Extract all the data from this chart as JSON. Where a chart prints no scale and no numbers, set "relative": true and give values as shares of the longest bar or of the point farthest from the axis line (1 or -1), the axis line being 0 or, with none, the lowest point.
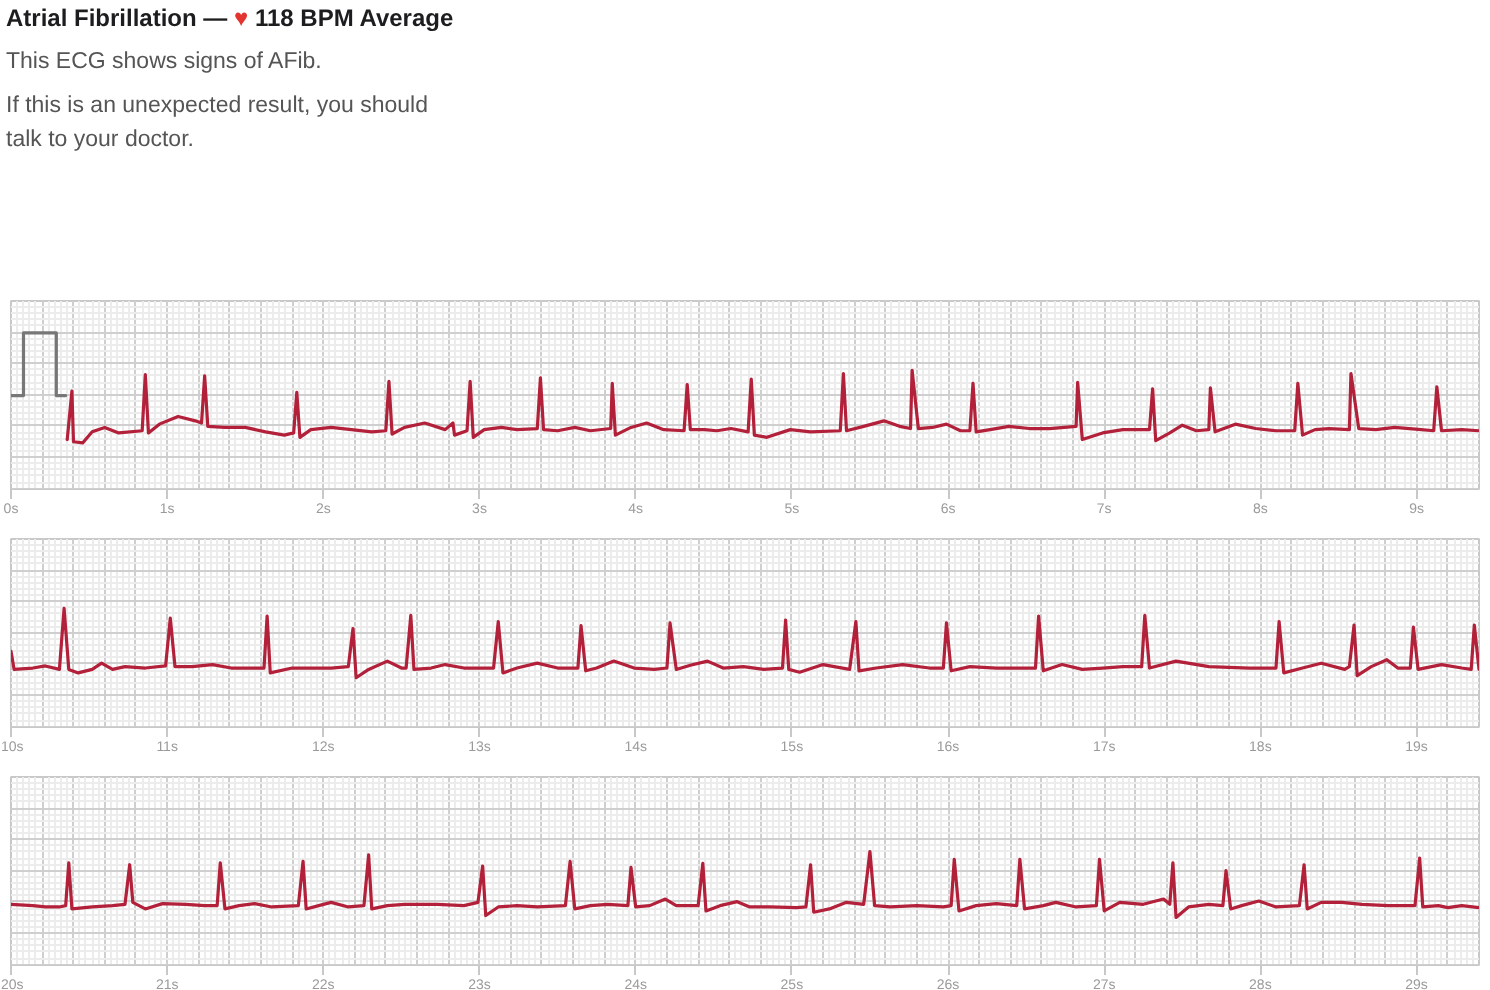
{
  "chart_data": [
    {
      "type": "line",
      "title": "Atrial Fibrillation — ♥ 118 BPM Average",
      "subtitle": "This ECG shows signs of AFib.",
      "annotations": [
        "If this is an unexpected result, you should talk to your doctor."
      ],
      "relative": true,
      "xlim": [
        0,
        9.4
      ],
      "xticks": [
        {
          "value": 0,
          "label": "0s"
        },
        {
          "value": 1,
          "label": "1s"
        },
        {
          "value": 2,
          "label": "2s"
        },
        {
          "value": 3,
          "label": "3s"
        },
        {
          "value": 4,
          "label": "4s"
        },
        {
          "value": 5,
          "label": "5s"
        },
        {
          "value": 6,
          "label": "6s"
        },
        {
          "value": 7,
          "label": "7s"
        },
        {
          "value": 8,
          "label": "8s"
        },
        {
          "value": 9,
          "label": "9s"
        }
      ],
      "grid": true,
      "series": [
        {
          "color": "#777777",
          "x": [
            0.0,
            0.08,
            0.08,
            0.29,
            0.29,
            0.35
          ],
          "values": [
            0.43,
            0.43,
            1.0,
            1.0,
            0.43,
            0.43
          ]
        },
        {
          "color": "#b3203a",
          "x": [
            0.36,
            0.39,
            0.4,
            0.46,
            0.52,
            0.6,
            0.69,
            0.84,
            0.86,
            0.88,
            0.95,
            1.07,
            1.18,
            1.22,
            1.24,
            1.26,
            1.37,
            1.5,
            1.63,
            1.75,
            1.81,
            1.83,
            1.85,
            1.92,
            2.05,
            2.18,
            2.31,
            2.4,
            2.42,
            2.44,
            2.52,
            2.65,
            2.78,
            2.83,
            2.84,
            2.92,
            2.94,
            2.96,
            3.03,
            3.14,
            3.24,
            3.37,
            3.39,
            3.41,
            3.5,
            3.61,
            3.71,
            3.84,
            3.85,
            3.87,
            3.97,
            4.07,
            4.18,
            4.31,
            4.33,
            4.35,
            4.44,
            4.52,
            4.61,
            4.72,
            4.74,
            4.76,
            4.84,
            4.99,
            5.12,
            5.31,
            5.33,
            5.35,
            5.46,
            5.59,
            5.69,
            5.76,
            5.77,
            5.81,
            5.9,
            5.99,
            6.08,
            6.14,
            6.16,
            6.18,
            6.27,
            6.39,
            6.52,
            6.65,
            6.82,
            6.83,
            6.86,
            6.99,
            7.12,
            7.29,
            7.31,
            7.33,
            7.42,
            7.5,
            7.59,
            7.67,
            7.68,
            7.71,
            7.84,
            7.97,
            8.1,
            8.22,
            8.24,
            8.27,
            8.35,
            8.44,
            8.57,
            8.58,
            8.63,
            8.74,
            8.86,
            9.03,
            9.11,
            9.13,
            9.16,
            9.29,
            9.4
          ],
          "values": [
            0.03,
            0.47,
            0.01,
            0.0,
            0.1,
            0.14,
            0.09,
            0.11,
            0.62,
            0.09,
            0.17,
            0.24,
            0.2,
            0.18,
            0.61,
            0.15,
            0.14,
            0.14,
            0.1,
            0.07,
            0.09,
            0.46,
            0.05,
            0.12,
            0.14,
            0.12,
            0.1,
            0.11,
            0.56,
            0.08,
            0.14,
            0.18,
            0.12,
            0.18,
            0.07,
            0.11,
            0.56,
            0.05,
            0.12,
            0.14,
            0.12,
            0.13,
            0.59,
            0.12,
            0.11,
            0.14,
            0.11,
            0.13,
            0.54,
            0.07,
            0.14,
            0.18,
            0.12,
            0.11,
            0.53,
            0.12,
            0.12,
            0.11,
            0.13,
            0.1,
            0.58,
            0.07,
            0.05,
            0.12,
            0.1,
            0.11,
            0.63,
            0.11,
            0.15,
            0.2,
            0.15,
            0.13,
            0.66,
            0.13,
            0.14,
            0.17,
            0.11,
            0.11,
            0.54,
            0.1,
            0.12,
            0.15,
            0.13,
            0.13,
            0.15,
            0.55,
            0.03,
            0.09,
            0.12,
            0.12,
            0.49,
            0.02,
            0.09,
            0.16,
            0.11,
            0.12,
            0.5,
            0.1,
            0.17,
            0.13,
            0.11,
            0.11,
            0.54,
            0.07,
            0.12,
            0.13,
            0.12,
            0.63,
            0.13,
            0.12,
            0.14,
            0.12,
            0.11,
            0.51,
            0.11,
            0.12,
            0.11
          ]
        }
      ]
    },
    {
      "type": "line",
      "relative": true,
      "xlim": [
        10,
        19.4
      ],
      "xticks": [
        {
          "value": 10,
          "label": "10s"
        },
        {
          "value": 11,
          "label": "11s"
        },
        {
          "value": 12,
          "label": "12s"
        },
        {
          "value": 13,
          "label": "13s"
        },
        {
          "value": 14,
          "label": "14s"
        },
        {
          "value": 15,
          "label": "15s"
        },
        {
          "value": 16,
          "label": "16s"
        },
        {
          "value": 17,
          "label": "17s"
        },
        {
          "value": 18,
          "label": "18s"
        },
        {
          "value": 19,
          "label": "19s"
        }
      ],
      "grid": true,
      "series": [
        {
          "color": "#b3203a",
          "x": [
            10.0,
            10.02,
            10.14,
            10.22,
            10.31,
            10.34,
            10.37,
            10.43,
            10.52,
            10.58,
            10.65,
            10.73,
            10.86,
            10.99,
            11.02,
            11.05,
            11.16,
            11.29,
            11.41,
            11.54,
            11.62,
            11.64,
            11.66,
            11.8,
            11.92,
            12.05,
            12.16,
            12.19,
            12.21,
            12.29,
            12.41,
            12.5,
            12.53,
            12.56,
            12.58,
            12.69,
            12.78,
            12.9,
            13.09,
            13.12,
            13.15,
            13.24,
            13.37,
            13.5,
            13.63,
            13.65,
            13.68,
            13.75,
            13.86,
            13.99,
            14.12,
            14.2,
            14.22,
            14.26,
            14.35,
            14.46,
            14.56,
            14.69,
            14.82,
            14.94,
            14.96,
            14.98,
            15.05,
            15.2,
            15.37,
            15.41,
            15.43,
            15.54,
            15.71,
            15.88,
            15.97,
            15.99,
            16.02,
            16.14,
            16.31,
            16.56,
            16.58,
            16.61,
            16.73,
            16.86,
            16.99,
            17.12,
            17.24,
            17.26,
            17.29,
            17.46,
            17.67,
            17.93,
            18.1,
            18.12,
            18.15,
            18.27,
            18.39,
            18.54,
            18.57,
            18.6,
            18.62,
            18.71,
            18.81,
            18.88,
            18.96,
            18.98,
            19.01,
            19.16,
            19.29,
            19.35,
            19.37,
            19.4
          ],
          "values": [
            0.38,
            0.12,
            0.14,
            0.17,
            0.12,
            1.0,
            0.12,
            0.07,
            0.12,
            0.21,
            0.12,
            0.16,
            0.14,
            0.17,
            0.86,
            0.16,
            0.16,
            0.19,
            0.14,
            0.14,
            0.14,
            0.89,
            0.07,
            0.14,
            0.14,
            0.14,
            0.16,
            0.71,
            0.0,
            0.12,
            0.24,
            0.14,
            0.14,
            0.9,
            0.12,
            0.14,
            0.19,
            0.14,
            0.14,
            0.81,
            0.07,
            0.14,
            0.21,
            0.14,
            0.14,
            0.75,
            0.1,
            0.14,
            0.24,
            0.14,
            0.12,
            0.14,
            0.79,
            0.12,
            0.18,
            0.24,
            0.14,
            0.16,
            0.12,
            0.14,
            0.83,
            0.12,
            0.08,
            0.19,
            0.12,
            0.81,
            0.1,
            0.14,
            0.19,
            0.14,
            0.14,
            0.79,
            0.1,
            0.16,
            0.14,
            0.14,
            0.89,
            0.1,
            0.19,
            0.12,
            0.14,
            0.16,
            0.16,
            0.9,
            0.14,
            0.24,
            0.16,
            0.14,
            0.14,
            0.81,
            0.07,
            0.14,
            0.21,
            0.12,
            0.16,
            0.76,
            0.03,
            0.16,
            0.26,
            0.14,
            0.14,
            0.73,
            0.12,
            0.19,
            0.14,
            0.12,
            0.76,
            0.12
          ]
        }
      ]
    },
    {
      "type": "line",
      "relative": true,
      "xlim": [
        20,
        29.4
      ],
      "xticks": [
        {
          "value": 20,
          "label": "20s"
        },
        {
          "value": 21,
          "label": "21s"
        },
        {
          "value": 22,
          "label": "22s"
        },
        {
          "value": 23,
          "label": "23s"
        },
        {
          "value": 24,
          "label": "24s"
        },
        {
          "value": 25,
          "label": "25s"
        },
        {
          "value": 26,
          "label": "26s"
        },
        {
          "value": 27,
          "label": "27s"
        },
        {
          "value": 28,
          "label": "28s"
        },
        {
          "value": 29,
          "label": "29s"
        }
      ],
      "grid": true,
      "series": [
        {
          "color": "#b3203a",
          "x": [
            20.0,
            20.14,
            20.22,
            20.31,
            20.35,
            20.37,
            20.39,
            20.52,
            20.65,
            20.73,
            20.76,
            20.78,
            20.86,
            20.97,
            21.12,
            21.24,
            21.32,
            21.34,
            21.37,
            21.46,
            21.56,
            21.67,
            21.84,
            21.87,
            21.89,
            21.97,
            22.05,
            22.16,
            22.26,
            22.29,
            22.31,
            22.41,
            22.52,
            22.73,
            22.9,
            22.99,
            23.02,
            23.04,
            23.12,
            23.24,
            23.37,
            23.55,
            23.58,
            23.61,
            23.71,
            23.82,
            23.95,
            23.97,
            24.0,
            24.09,
            24.19,
            24.26,
            24.4,
            24.43,
            24.45,
            24.54,
            24.65,
            24.73,
            24.86,
            25.03,
            25.09,
            25.12,
            25.14,
            25.24,
            25.35,
            25.46,
            25.5,
            25.53,
            25.63,
            25.8,
            25.97,
            26.02,
            26.04,
            26.07,
            26.18,
            26.31,
            26.44,
            26.46,
            26.49,
            26.61,
            26.69,
            26.82,
            26.95,
            26.97,
            27.0,
            27.1,
            27.25,
            27.38,
            27.42,
            27.44,
            27.46,
            27.54,
            27.67,
            27.76,
            27.78,
            27.81,
            27.88,
            27.99,
            28.1,
            28.25,
            28.28,
            28.3,
            28.39,
            28.52,
            28.65,
            28.82,
            28.99,
            29.02,
            29.04,
            29.14,
            29.2,
            29.29,
            29.4
          ],
          "values": [
            0.2,
            0.18,
            0.16,
            0.16,
            0.18,
            0.83,
            0.13,
            0.16,
            0.18,
            0.2,
            0.8,
            0.23,
            0.13,
            0.21,
            0.2,
            0.18,
            0.18,
            0.83,
            0.13,
            0.18,
            0.21,
            0.16,
            0.18,
            0.85,
            0.13,
            0.18,
            0.23,
            0.16,
            0.18,
            0.95,
            0.13,
            0.18,
            0.2,
            0.2,
            0.18,
            0.23,
            0.78,
            0.03,
            0.16,
            0.18,
            0.16,
            0.18,
            0.85,
            0.13,
            0.18,
            0.2,
            0.18,
            0.76,
            0.16,
            0.18,
            0.28,
            0.18,
            0.18,
            0.82,
            0.1,
            0.18,
            0.24,
            0.16,
            0.16,
            0.15,
            0.16,
            0.8,
            0.08,
            0.13,
            0.23,
            0.2,
            1.0,
            0.18,
            0.16,
            0.18,
            0.16,
            0.18,
            0.88,
            0.1,
            0.18,
            0.21,
            0.18,
            0.88,
            0.13,
            0.18,
            0.23,
            0.16,
            0.18,
            0.88,
            0.1,
            0.23,
            0.2,
            0.28,
            0.2,
            0.83,
            0.0,
            0.16,
            0.2,
            0.18,
            0.71,
            0.13,
            0.18,
            0.25,
            0.16,
            0.18,
            0.8,
            0.13,
            0.23,
            0.23,
            0.2,
            0.18,
            0.18,
            0.9,
            0.16,
            0.18,
            0.15,
            0.18,
            0.15
          ]
        }
      ]
    }
  ]
}
